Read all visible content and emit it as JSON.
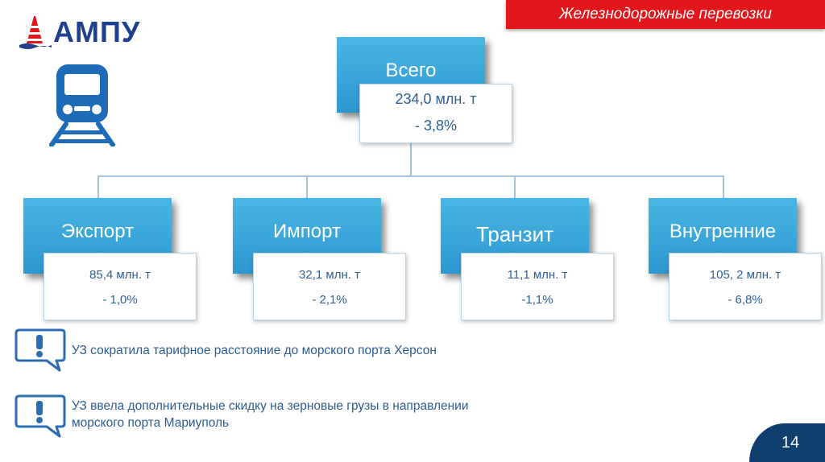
{
  "header": {
    "title": "Железнодорожные перевозки"
  },
  "logo": {
    "text": "АМПУ"
  },
  "chart": {
    "total": {
      "label": "Всего",
      "volume": "234,0 млн. т",
      "change": "- 3,8%"
    },
    "items": [
      {
        "label": "Экспорт",
        "volume": "85,4 млн. т",
        "change": "- 1,0%"
      },
      {
        "label": "Импорт",
        "volume": "32,1 млн. т",
        "change": "- 2,1%"
      },
      {
        "label": "Транзит",
        "volume": "11,1 млн. т",
        "change": "-1,1%"
      },
      {
        "label": "Внутренние",
        "volume": "105, 2 млн. т",
        "change": "- 6,8%"
      }
    ]
  },
  "notes": [
    {
      "text": "УЗ сократила тарифное расстояние до морского порта Херсон"
    },
    {
      "line1": "УЗ ввела дополнительные скидку на зерновые грузы в направлении",
      "line2": "морского порта Мариуполь"
    }
  ],
  "footer": {
    "page_number": "14"
  },
  "colors": {
    "accent_red": "#e3161b",
    "box_blue": "#3aa8dc",
    "text_blue": "#2e5f95",
    "navy": "#0f3f6e"
  },
  "icons": [
    "ampu-logo-icon",
    "train-icon",
    "alert-icon"
  ]
}
